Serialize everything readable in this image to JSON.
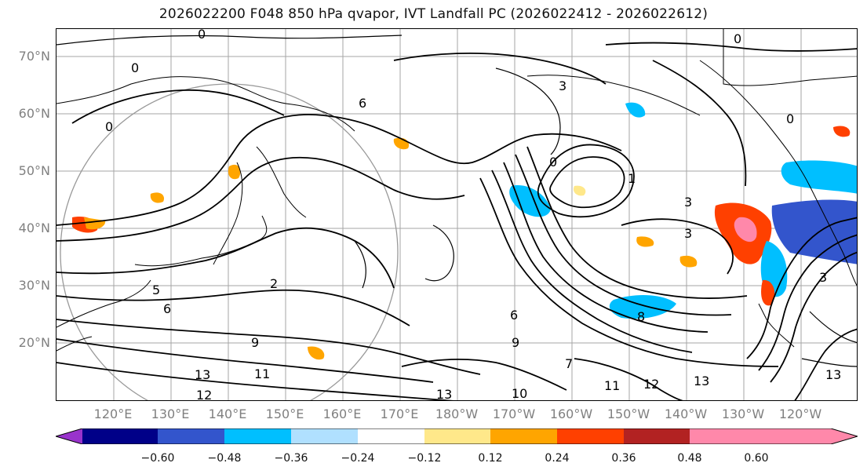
{
  "title": "2026022200 F048 850 hPa qvapor, IVT Landfall PC (2026022412 - 2026022612)",
  "map": {
    "lat_labels": [
      "70°N",
      "60°N",
      "50°N",
      "40°N",
      "30°N",
      "20°N"
    ],
    "lon_labels": [
      "120°E",
      "130°E",
      "140°E",
      "150°E",
      "160°E",
      "170°E",
      "180°W",
      "170°W",
      "160°W",
      "150°W",
      "140°W",
      "130°W",
      "120°W"
    ],
    "contour_labels": [
      "0",
      "0",
      "0",
      "0",
      "6",
      "0",
      "3",
      "3",
      "3",
      "3",
      "0",
      "1",
      "5",
      "2",
      "9",
      "11",
      "13",
      "13",
      "10",
      "12",
      "13",
      "11",
      "12",
      "13",
      "8",
      "6",
      "7",
      "9",
      "6"
    ],
    "colors": {
      "land_edge": "#000000",
      "grid": "#808080",
      "contour": "#000000"
    }
  },
  "colorbar": {
    "colors": [
      "#9933cc",
      "#000088",
      "#3355cc",
      "#00bfff",
      "#b0e0ff",
      "#ffffff",
      "#ffe88a",
      "#ffa500",
      "#ff4000",
      "#b22222",
      "#ff88aa"
    ],
    "ticks": [
      "−0.60",
      "−0.48",
      "−0.36",
      "−0.24",
      "−0.12",
      "0.12",
      "0.24",
      "0.36",
      "0.48",
      "0.60"
    ]
  }
}
